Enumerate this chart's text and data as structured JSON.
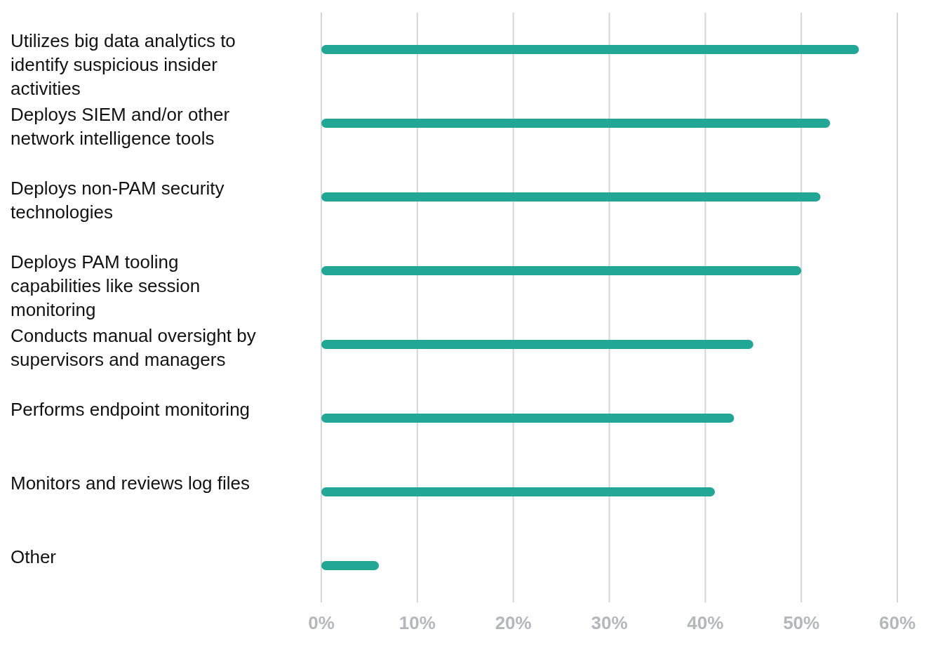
{
  "chart_data": {
    "type": "bar",
    "orientation": "horizontal",
    "categories": [
      "Utilizes big data analytics to identify suspicious insider activities",
      "Deploys SIEM and/or other network intelligence tools",
      "Deploys non-PAM security technologies",
      "Deploys PAM tooling capabilities like session monitoring",
      "Conducts manual oversight by supervisors and managers",
      "Performs endpoint monitoring",
      "Monitors and reviews log files",
      "Other"
    ],
    "values": [
      56,
      53,
      52,
      50,
      45,
      43,
      41,
      6
    ],
    "color": "#22a796",
    "xlim": [
      0,
      60
    ],
    "xticks": [
      {
        "value": 0,
        "label": "0%"
      },
      {
        "value": 10,
        "label": "10%"
      },
      {
        "value": 20,
        "label": "20%"
      },
      {
        "value": 30,
        "label": "30%"
      },
      {
        "value": 40,
        "label": "40%"
      },
      {
        "value": 50,
        "label": "50%"
      },
      {
        "value": 60,
        "label": "60%"
      }
    ],
    "grid": "x",
    "legend": false
  }
}
